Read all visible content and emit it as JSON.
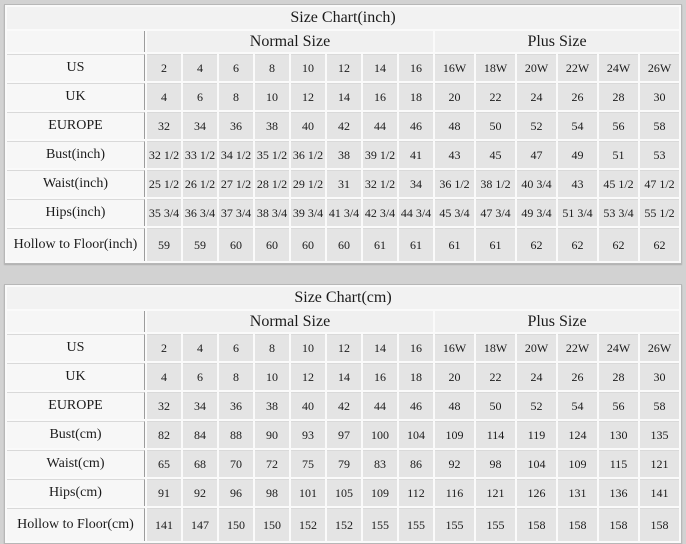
{
  "page": {
    "background": "#d2d2d2"
  },
  "colors": {
    "page_background": "#d2d2d2",
    "table_background": "#fafafa",
    "title_cell": "#f2f2f2",
    "group_header_cell": "#f0f0f0",
    "label_cell": "#f7f7f7",
    "data_cell": "#e4e4e4",
    "label_divider": "#9c9c9c",
    "text": "#1b1b1b"
  },
  "chart_data": [
    {
      "type": "table",
      "title": "Size Chart(inch)",
      "column_groups": [
        {
          "label": "Normal Size",
          "span": 8
        },
        {
          "label": "Plus Size",
          "span": 6
        }
      ],
      "rows": [
        {
          "label": "US",
          "values": [
            "2",
            "4",
            "6",
            "8",
            "10",
            "12",
            "14",
            "16",
            "16W",
            "18W",
            "20W",
            "22W",
            "24W",
            "26W"
          ]
        },
        {
          "label": "UK",
          "values": [
            "4",
            "6",
            "8",
            "10",
            "12",
            "14",
            "16",
            "18",
            "20",
            "22",
            "24",
            "26",
            "28",
            "30"
          ]
        },
        {
          "label": "EUROPE",
          "values": [
            "32",
            "34",
            "36",
            "38",
            "40",
            "42",
            "44",
            "46",
            "48",
            "50",
            "52",
            "54",
            "56",
            "58"
          ]
        },
        {
          "label": "Bust(inch)",
          "values": [
            "32 1/2",
            "33 1/2",
            "34 1/2",
            "35 1/2",
            "36 1/2",
            "38",
            "39 1/2",
            "41",
            "43",
            "45",
            "47",
            "49",
            "51",
            "53"
          ]
        },
        {
          "label": "Waist(inch)",
          "values": [
            "25 1/2",
            "26 1/2",
            "27 1/2",
            "28 1/2",
            "29 1/2",
            "31",
            "32 1/2",
            "34",
            "36 1/2",
            "38 1/2",
            "40 3/4",
            "43",
            "45 1/2",
            "47 1/2"
          ]
        },
        {
          "label": "Hips(inch)",
          "values": [
            "35 3/4",
            "36 3/4",
            "37 3/4",
            "38 3/4",
            "39 3/4",
            "41 3/4",
            "42 3/4",
            "44 3/4",
            "45 3/4",
            "47 3/4",
            "49 3/4",
            "51 3/4",
            "53 3/4",
            "55 1/2"
          ]
        },
        {
          "label": "Hollow to Floor(inch)",
          "values": [
            "59",
            "59",
            "60",
            "60",
            "60",
            "60",
            "61",
            "61",
            "61",
            "61",
            "62",
            "62",
            "62",
            "62"
          ]
        }
      ]
    },
    {
      "type": "table",
      "title": "Size Chart(cm)",
      "column_groups": [
        {
          "label": "Normal Size",
          "span": 8
        },
        {
          "label": "Plus Size",
          "span": 6
        }
      ],
      "rows": [
        {
          "label": "US",
          "values": [
            "2",
            "4",
            "6",
            "8",
            "10",
            "12",
            "14",
            "16",
            "16W",
            "18W",
            "20W",
            "22W",
            "24W",
            "26W"
          ]
        },
        {
          "label": "UK",
          "values": [
            "4",
            "6",
            "8",
            "10",
            "12",
            "14",
            "16",
            "18",
            "20",
            "22",
            "24",
            "26",
            "28",
            "30"
          ]
        },
        {
          "label": "EUROPE",
          "values": [
            "32",
            "34",
            "36",
            "38",
            "40",
            "42",
            "44",
            "46",
            "48",
            "50",
            "52",
            "54",
            "56",
            "58"
          ]
        },
        {
          "label": "Bust(cm)",
          "values": [
            "82",
            "84",
            "88",
            "90",
            "93",
            "97",
            "100",
            "104",
            "109",
            "114",
            "119",
            "124",
            "130",
            "135"
          ]
        },
        {
          "label": "Waist(cm)",
          "values": [
            "65",
            "68",
            "70",
            "72",
            "75",
            "79",
            "83",
            "86",
            "92",
            "98",
            "104",
            "109",
            "115",
            "121"
          ]
        },
        {
          "label": "Hips(cm)",
          "values": [
            "91",
            "92",
            "96",
            "98",
            "101",
            "105",
            "109",
            "112",
            "116",
            "121",
            "126",
            "131",
            "136",
            "141"
          ]
        },
        {
          "label": "Hollow to Floor(cm)",
          "values": [
            "141",
            "147",
            "150",
            "150",
            "152",
            "152",
            "155",
            "155",
            "155",
            "155",
            "158",
            "158",
            "158",
            "158"
          ]
        }
      ]
    }
  ]
}
